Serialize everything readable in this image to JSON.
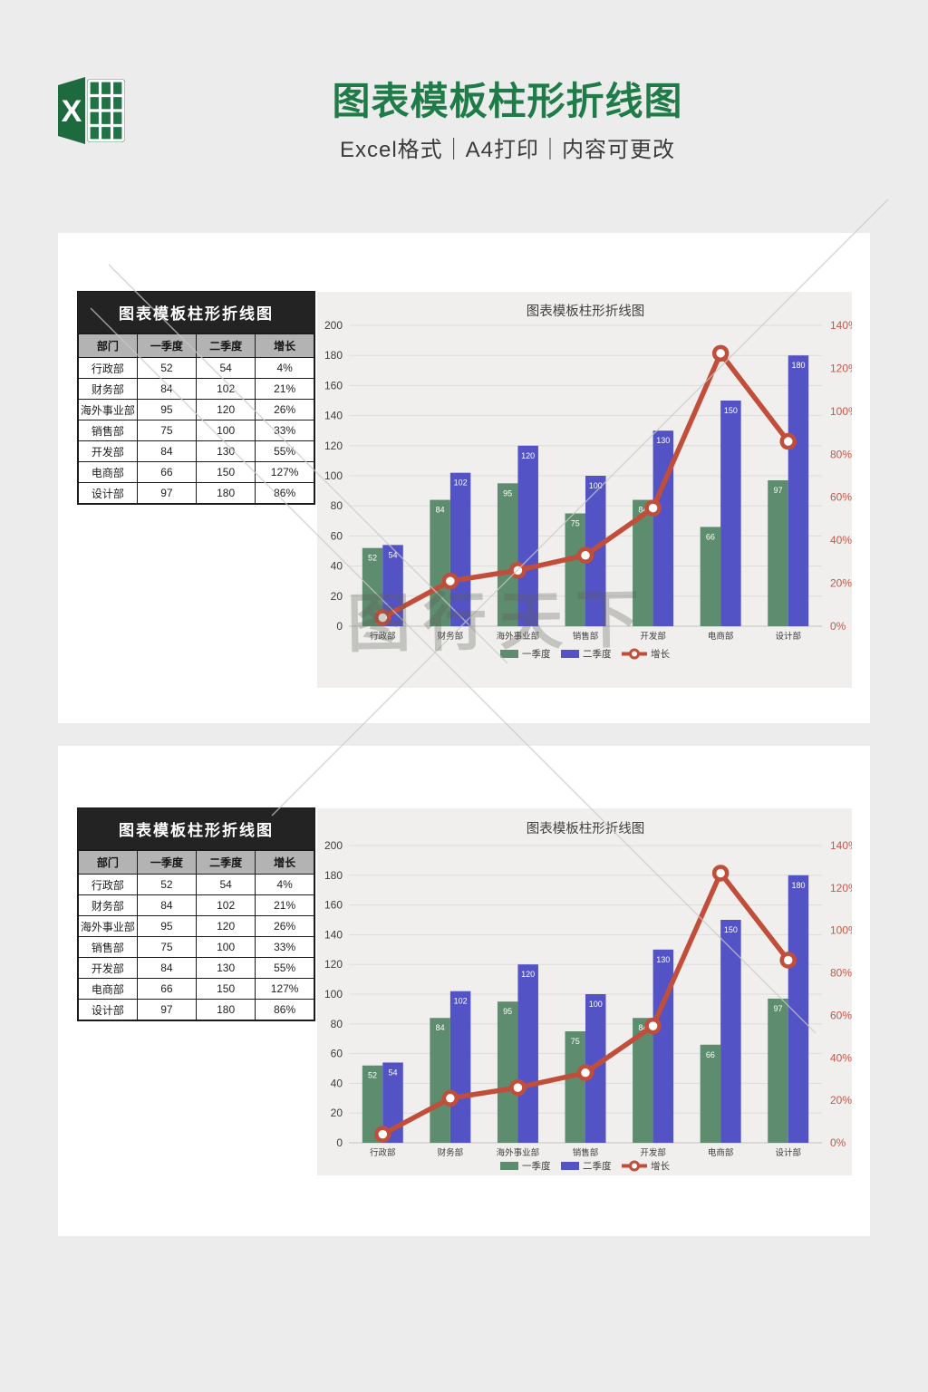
{
  "header": {
    "logo_letter": "X",
    "title": "图表模板柱形折线图",
    "subtitle": "Excel格式｜A4打印｜内容可更改",
    "title_color": "#1f7c48"
  },
  "panel": {
    "table": {
      "title": "图表模板柱形折线图",
      "columns": [
        "部门",
        "一季度",
        "二季度",
        "增长"
      ],
      "rows": [
        [
          "行政部",
          "52",
          "54",
          "4%"
        ],
        [
          "财务部",
          "84",
          "102",
          "21%"
        ],
        [
          "海外事业部",
          "95",
          "120",
          "26%"
        ],
        [
          "销售部",
          "75",
          "100",
          "33%"
        ],
        [
          "开发部",
          "84",
          "130",
          "55%"
        ],
        [
          "电商部",
          "66",
          "150",
          "127%"
        ],
        [
          "设计部",
          "97",
          "180",
          "86%"
        ]
      ]
    }
  },
  "chart_data": {
    "type": "bar",
    "subtype": "combo-bar-line",
    "title": "图表模板柱形折线图",
    "categories": [
      "行政部",
      "财务部",
      "海外事业部",
      "销售部",
      "开发部",
      "电商部",
      "设计部"
    ],
    "series": [
      {
        "name": "一季度",
        "type": "bar",
        "color": "#5d8c6e",
        "axis": "left",
        "values": [
          52,
          84,
          95,
          75,
          84,
          66,
          97
        ]
      },
      {
        "name": "二季度",
        "type": "bar",
        "color": "#5353c6",
        "axis": "left",
        "values": [
          54,
          102,
          120,
          100,
          130,
          150,
          180
        ]
      },
      {
        "name": "增长",
        "type": "line",
        "color": "#c04e3b",
        "axis": "right",
        "values": [
          4,
          21,
          26,
          33,
          55,
          127,
          86
        ]
      }
    ],
    "left_axis": {
      "min": 0,
      "max": 200,
      "step": 20
    },
    "right_axis": {
      "min": 0,
      "max": 140,
      "step": 20,
      "suffix": "%",
      "color": "#c4584a"
    },
    "legend_position": "bottom",
    "grid": true,
    "colors": {
      "bg": "#f0efed",
      "grid": "#dddddb",
      "baseline": "#c3c3c0",
      "axis_text": "#3d3d3d",
      "title": "#3f3f3f",
      "bar_label": "#ffffff"
    }
  },
  "watermark": {
    "text": "图行天下"
  }
}
